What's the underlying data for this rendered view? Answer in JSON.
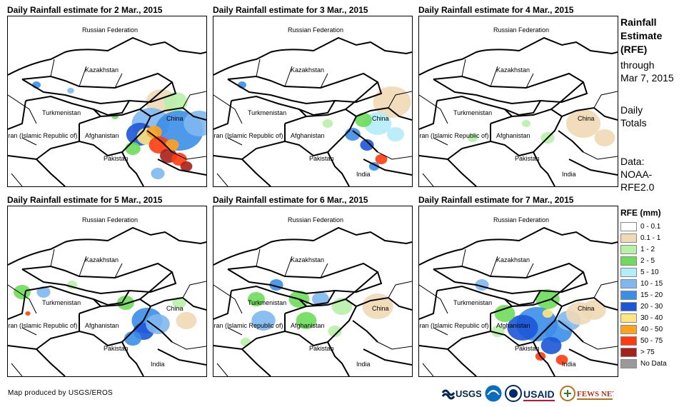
{
  "panels": [
    {
      "title": "Daily Rainfall estimate for 2 Mar., 2015",
      "labels": {
        "russia": "Russian Federation",
        "kazakhstan": "Kazakhstan",
        "turkmenistan": "Turkmenistan",
        "china": "China",
        "iran": "Iran (Islamic Republic of)",
        "afghanistan": "Afghanistan",
        "pakistan": "Pakistan",
        "india": ""
      }
    },
    {
      "title": "Daily Rainfall estimate for 3 Mar., 2015",
      "labels": {
        "russia": "Russian Federation",
        "kazakhstan": "Kazakhstan",
        "turkmenistan": "Turkmenistan",
        "china": "China",
        "iran": "Iran (Islamic Republic of)",
        "afghanistan": "Afghanistan",
        "pakistan": "Pakistan",
        "india": "India"
      }
    },
    {
      "title": "Daily Rainfall estimate for 4 Mar., 2015",
      "labels": {
        "russia": "Russian Federation",
        "kazakhstan": "Kazakhstan",
        "turkmenistan": "Turkmenistan",
        "china": "China",
        "iran": "Iran (Islamic Republic of)",
        "afghanistan": "Afghanistan",
        "pakistan": "Pakistan",
        "india": "India"
      }
    },
    {
      "title": "Daily Rainfall estimate for 5 Mar., 2015",
      "labels": {
        "russia": "Russian Federation",
        "kazakhstan": "Kazakhstan",
        "turkmenistan": "Turkmenistan",
        "china": "China",
        "iran": "Iran (Islamic Republic of)",
        "afghanistan": "Afghanistan",
        "pakistan": "Pakistan",
        "india": "India"
      }
    },
    {
      "title": "Daily Rainfall estimate for 6 Mar., 2015",
      "labels": {
        "russia": "Russian Federation",
        "kazakhstan": "Kazakhstan",
        "turkmenistan": "Turkmenistan",
        "china": "China",
        "iran": "Iran (Islamic Republic of)",
        "afghanistan": "Afghanistan",
        "pakistan": "Pakistan",
        "india": "India"
      }
    },
    {
      "title": "Daily Rainfall estimate for 7 Mar., 2015",
      "labels": {
        "russia": "Russian Federation",
        "kazakhstan": "Kazakhstan",
        "turkmenistan": "Turkmenistan",
        "china": "China",
        "iran": "Iran (Islamic Republic of)",
        "afghanistan": "Afghanistan",
        "pakistan": "Pakistan",
        "india": "India"
      }
    }
  ],
  "side": {
    "title_line1": "Rainfall",
    "title_line2": "Estimate",
    "title_line3": "(RFE)",
    "through": "through",
    "date": "Mar 7, 2015",
    "daily": "Daily",
    "totals": "Totals",
    "data_label": "Data:",
    "source1": "NOAA-",
    "source2": "RFE2.0"
  },
  "legend": {
    "title": "RFE (mm)",
    "items": [
      {
        "label": "0 - 0.1",
        "color": "#ffffff"
      },
      {
        "label": "0.1 - 1",
        "color": "#f0d9b5"
      },
      {
        "label": "1 - 2",
        "color": "#b8f0a8"
      },
      {
        "label": "2 - 5",
        "color": "#6edc5a"
      },
      {
        "label": "5 - 10",
        "color": "#b4ecf8"
      },
      {
        "label": "10 - 15",
        "color": "#7fb8f0"
      },
      {
        "label": "15 - 20",
        "color": "#3c8ee8"
      },
      {
        "label": "20 - 30",
        "color": "#1c56d8"
      },
      {
        "label": "30 - 40",
        "color": "#ffe680"
      },
      {
        "label": "40 - 50",
        "color": "#ffa21e"
      },
      {
        "label": "50 - 75",
        "color": "#ff3c10"
      },
      {
        "label": "> 75",
        "color": "#a8201a"
      },
      {
        "label": "No Data",
        "color": "#9a9a9a"
      }
    ]
  },
  "credit": "Map produced by USGS/EROS",
  "logos": {
    "usgs": "USGS",
    "usaid": "USAID",
    "fews": "FEWS NET"
  }
}
